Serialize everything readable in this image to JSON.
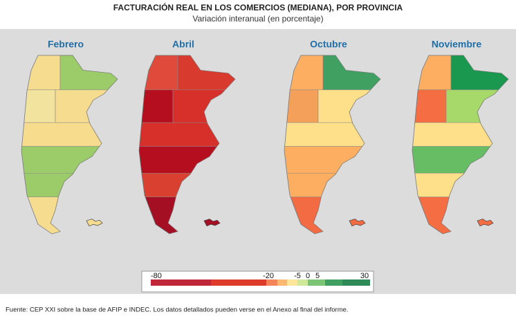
{
  "header": {
    "title": "FACTURACIÓN REAL EN LOS COMERCIOS (MEDIANA), POR PROVINCIA",
    "subtitle": "Variación interanual (en porcentaje)"
  },
  "maps": [
    {
      "title": "Febrero",
      "colors": [
        "#f6dc8f",
        "#9ccc6a",
        "#f2e39f",
        "#f6dc8f",
        "#f7dc8e",
        "#9ccc6a",
        "#9ccc6a",
        "#f6dc8f"
      ]
    },
    {
      "title": "Abril",
      "colors": [
        "#e04a3a",
        "#d93a2e",
        "#b50f1f",
        "#d7302a",
        "#d7302a",
        "#b50f1f",
        "#d9402f",
        "#a50f24"
      ]
    },
    {
      "title": "Octubre",
      "colors": [
        "#fdae61",
        "#3fa062",
        "#f4a05a",
        "#fee08b",
        "#fee08b",
        "#fdae61",
        "#fdae61",
        "#f26b43"
      ]
    },
    {
      "title": "Noviembre",
      "colors": [
        "#fdae61",
        "#1a9850",
        "#f46d43",
        "#a6d96a",
        "#fee08b",
        "#66bd63",
        "#fee08b",
        "#f46d43"
      ]
    }
  ],
  "legend": {
    "ticks": [
      -80,
      -20,
      -5,
      0,
      5,
      30
    ],
    "colors": [
      "#c0283a",
      "#de3b2c",
      "#f4855a",
      "#fbb870",
      "#fde69a",
      "#cfe89a",
      "#7cc476",
      "#3fa062",
      "#2e8b57"
    ]
  },
  "footer": {
    "source": "Fuente: CEP XXI sobre la base de AFIP e INDEC. Los datos detallados pueden verse en el Anexo al final del informe."
  }
}
